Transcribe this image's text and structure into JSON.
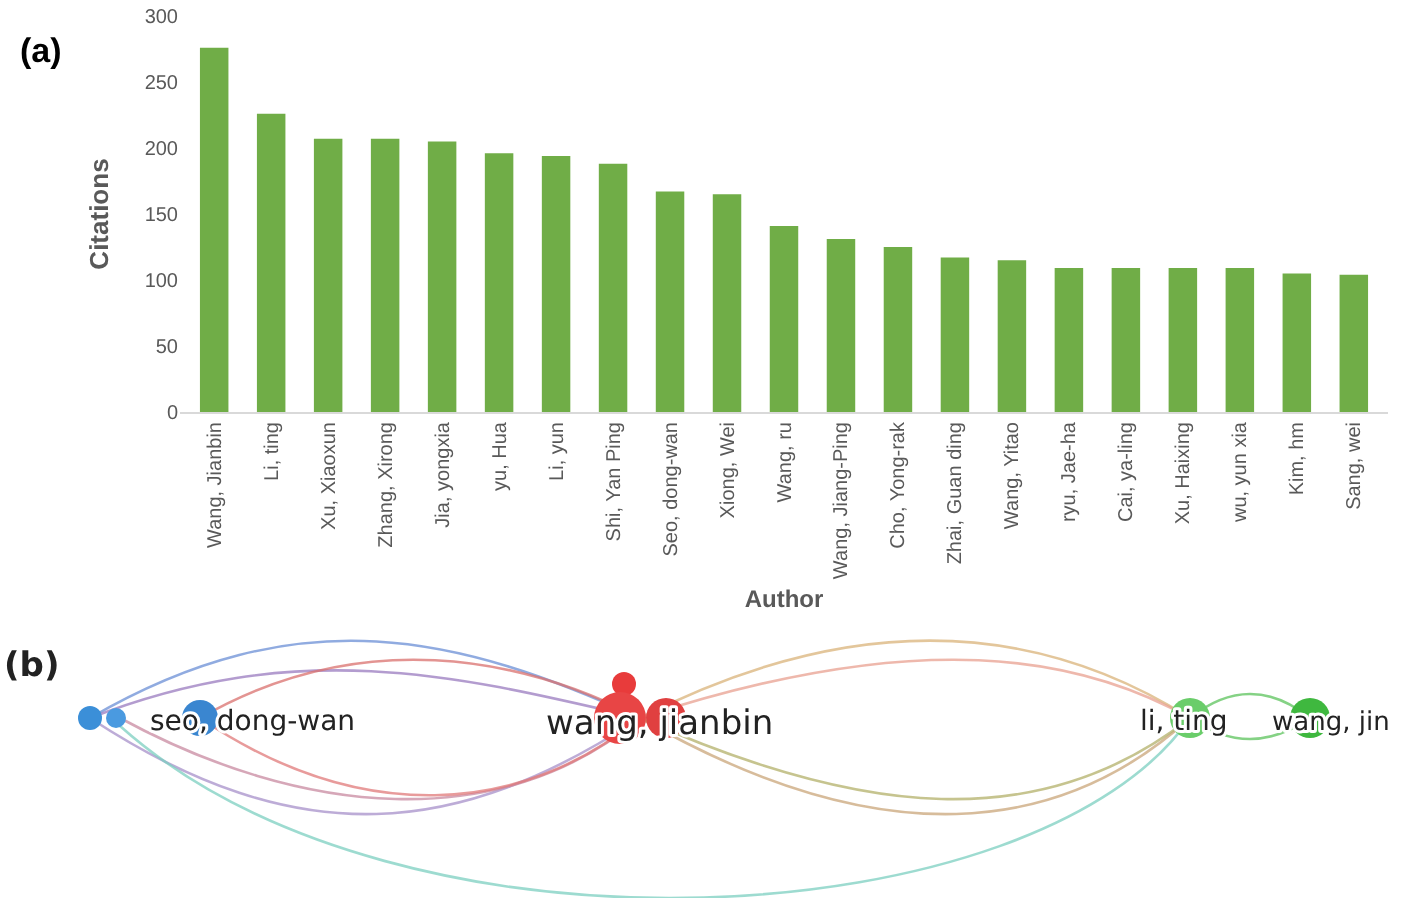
{
  "chart_data": [
    {
      "type": "bar",
      "xlabel": "Author",
      "ylabel": "Citations",
      "annotations": [
        "(a)"
      ],
      "categories": [
        "Wang, Jianbin",
        "Li, ting",
        "Xu, Xiaoxun",
        "Zhang, Xirong",
        "Jia, yongxia",
        "yu, Hua",
        "Li, yun",
        "Shi, Yan Ping",
        "Seo, dong-wan",
        "Xiong, Wei",
        "Wang, ru",
        "Wang, Jiang-Ping",
        "Cho, Yong-rak",
        "Zhai, Guan ding",
        "Wang, Yitao",
        "ryu, Jae-ha",
        "Cai, ya-ling",
        "Xu, Haixing",
        "wu, yun xia",
        "Kim, hm",
        "Sang, wei"
      ],
      "values": [
        276,
        226,
        207,
        207,
        205,
        196,
        194,
        188,
        167,
        165,
        141,
        131,
        125,
        117,
        115,
        109,
        109,
        109,
        109,
        105,
        104
      ],
      "color": "#70ad47",
      "ylim": [
        0,
        300
      ],
      "yticks": [
        0,
        50,
        100,
        150,
        200,
        250,
        300
      ],
      "grid": false
    },
    {
      "type": "other",
      "annotations": [
        "(b)",
        "seo, dong-wan",
        "wang, jianbin",
        "li, ting",
        "wang, jin"
      ]
    }
  ]
}
